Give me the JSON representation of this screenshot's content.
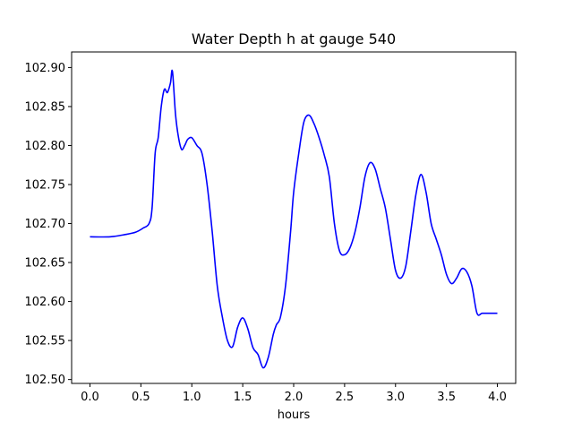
{
  "chart_data": {
    "type": "line",
    "title": "Water Depth h at gauge 540",
    "xlabel": "hours",
    "ylabel": "",
    "xlim": [
      -0.18,
      4.18
    ],
    "ylim": [
      102.495,
      102.92
    ],
    "grid": false,
    "color": "#0000ff",
    "x_ticks": [
      0.0,
      0.5,
      1.0,
      1.5,
      2.0,
      2.5,
      3.0,
      3.5,
      4.0
    ],
    "x_tick_labels": [
      "0.0",
      "0.5",
      "1.0",
      "1.5",
      "2.0",
      "2.5",
      "3.0",
      "3.5",
      "4.0"
    ],
    "y_ticks": [
      102.5,
      102.55,
      102.6,
      102.65,
      102.7,
      102.75,
      102.8,
      102.85,
      102.9
    ],
    "y_tick_labels": [
      "102.50",
      "102.55",
      "102.60",
      "102.65",
      "102.70",
      "102.75",
      "102.80",
      "102.85",
      "102.90"
    ],
    "series": [
      {
        "x": [
          0.0,
          0.2,
          0.35,
          0.45,
          0.52,
          0.58,
          0.61,
          0.64,
          0.67,
          0.7,
          0.73,
          0.76,
          0.79,
          0.81,
          0.84,
          0.87,
          0.9,
          0.93,
          0.96,
          1.0,
          1.05,
          1.1,
          1.15,
          1.2,
          1.25,
          1.3,
          1.35,
          1.4,
          1.45,
          1.5,
          1.55,
          1.6,
          1.65,
          1.7,
          1.75,
          1.8,
          1.83,
          1.87,
          1.92,
          1.97,
          2.0,
          2.05,
          2.1,
          2.15,
          2.2,
          2.25,
          2.3,
          2.35,
          2.4,
          2.45,
          2.5,
          2.55,
          2.6,
          2.65,
          2.7,
          2.75,
          2.8,
          2.85,
          2.9,
          2.95,
          3.0,
          3.05,
          3.1,
          3.15,
          3.2,
          3.25,
          3.3,
          3.35,
          3.4,
          3.45,
          3.5,
          3.55,
          3.6,
          3.65,
          3.7,
          3.75,
          3.8,
          3.85,
          3.9,
          3.95,
          4.0
        ],
        "values": [
          102.683,
          102.683,
          102.686,
          102.689,
          102.694,
          102.7,
          102.72,
          102.79,
          102.81,
          102.85,
          102.872,
          102.868,
          102.88,
          102.895,
          102.84,
          102.81,
          102.795,
          102.8,
          102.808,
          102.81,
          102.8,
          102.79,
          102.75,
          102.69,
          102.62,
          102.58,
          102.55,
          102.542,
          102.567,
          102.579,
          102.565,
          102.541,
          102.532,
          102.515,
          102.528,
          102.558,
          102.57,
          102.58,
          102.62,
          102.69,
          102.74,
          102.79,
          102.83,
          102.839,
          102.828,
          102.81,
          102.788,
          102.76,
          102.7,
          102.665,
          102.66,
          102.668,
          102.688,
          102.72,
          102.76,
          102.778,
          102.77,
          102.745,
          102.72,
          102.68,
          102.64,
          102.63,
          102.645,
          102.69,
          102.737,
          102.763,
          102.74,
          102.7,
          102.68,
          102.66,
          102.635,
          102.623,
          102.63,
          102.642,
          102.638,
          102.62,
          102.585,
          102.585,
          102.585,
          102.585,
          102.585
        ]
      }
    ]
  }
}
